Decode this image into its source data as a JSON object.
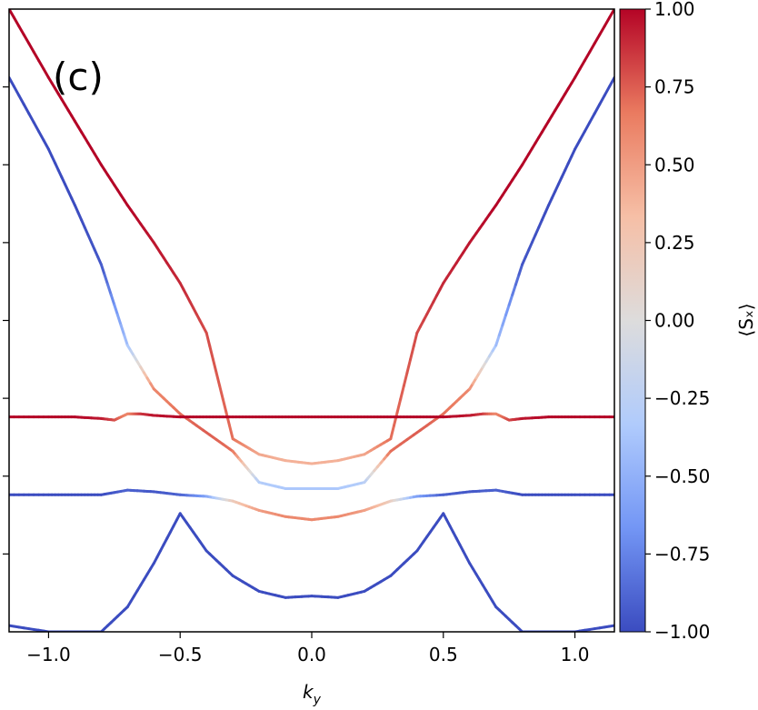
{
  "chart_data": {
    "type": "line",
    "panel_label": "(c)",
    "xlabel_main": "k",
    "xlabel_sub": "y",
    "ylabel": "",
    "xlim": [
      -1.15,
      1.15
    ],
    "ylim": [
      -1.0,
      1.0
    ],
    "y_ticks": [
      -0.75,
      -0.5,
      -0.25,
      0.0,
      0.25,
      0.5,
      0.75
    ],
    "x_ticks": [
      -1.0,
      -0.5,
      0.0,
      0.5,
      1.0
    ],
    "x_tick_labels": [
      "−1.0",
      "−0.5",
      "0.0",
      "0.5",
      "1.0"
    ],
    "grid": false,
    "colorbar": {
      "label": "⟨Sₓ⟩",
      "range": [
        -1.0,
        1.0
      ],
      "colormap": "coolwarm",
      "colors": [
        "#3b4cc0",
        "#7396f5",
        "#b0cbfc",
        "#dddcdc",
        "#f6bfa6",
        "#ea7b60",
        "#b40426"
      ],
      "ticks": [
        1.0,
        0.75,
        0.5,
        0.25,
        0.0,
        -0.25,
        -0.5,
        -0.75,
        -1.0
      ],
      "tick_labels": [
        "1.00",
        "0.75",
        "0.50",
        "0.25",
        "0.00",
        "−0.25",
        "−0.50",
        "−0.75",
        "−1.00"
      ]
    },
    "series": [
      {
        "x": [
          -1.15,
          -1.0,
          -0.9,
          -0.8,
          -0.7,
          -0.6,
          -0.5,
          -0.4,
          -0.3,
          -0.2,
          -0.1,
          0.0,
          0.1,
          0.2,
          0.3,
          0.4,
          0.5,
          0.6,
          0.7,
          0.8,
          0.9,
          1.0,
          1.15
        ],
        "y": [
          1.0,
          0.78,
          0.64,
          0.5,
          0.37,
          0.25,
          0.12,
          -0.04,
          -0.38,
          -0.43,
          -0.45,
          -0.46,
          -0.45,
          -0.43,
          -0.38,
          -0.04,
          0.12,
          0.25,
          0.37,
          0.5,
          0.64,
          0.78,
          1.0
        ],
        "sx": [
          1,
          1,
          1,
          1,
          1,
          0.95,
          0.9,
          0.8,
          0.7,
          0.45,
          0.4,
          0.4,
          0.4,
          0.45,
          0.7,
          0.8,
          0.9,
          0.95,
          1,
          1,
          1,
          1,
          1
        ]
      },
      {
        "x": [
          -1.15,
          -1.0,
          -0.9,
          -0.8,
          -0.7,
          -0.6,
          -0.5,
          -0.4,
          -0.3,
          -0.2,
          -0.1,
          0.0,
          0.1,
          0.2,
          0.3,
          0.4,
          0.5,
          0.6,
          0.7,
          0.8,
          0.9,
          1.0,
          1.15
        ],
        "y": [
          0.78,
          0.55,
          0.37,
          0.18,
          -0.08,
          -0.22,
          -0.3,
          -0.36,
          -0.42,
          -0.52,
          -0.54,
          -0.54,
          -0.54,
          -0.52,
          -0.42,
          -0.36,
          -0.3,
          -0.22,
          -0.08,
          0.18,
          0.37,
          0.55,
          0.78
        ],
        "sx": [
          -1,
          -1,
          -1,
          -0.95,
          -0.4,
          0.6,
          0.7,
          0.75,
          0.7,
          -0.3,
          -0.35,
          -0.35,
          -0.35,
          -0.3,
          0.7,
          0.75,
          0.7,
          0.6,
          -0.4,
          -0.95,
          -1,
          -1,
          -1
        ]
      },
      {
        "x": [
          -1.15,
          -1.0,
          -0.9,
          -0.8,
          -0.75,
          -0.7,
          -0.65,
          -0.6,
          -0.5,
          -0.4,
          -0.3,
          -0.2,
          -0.1,
          0.0,
          0.1,
          0.2,
          0.3,
          0.4,
          0.5,
          0.6,
          0.65,
          0.7,
          0.75,
          0.8,
          0.9,
          1.0,
          1.15
        ],
        "y": [
          -0.31,
          -0.31,
          -0.31,
          -0.315,
          -0.32,
          -0.3,
          -0.3,
          -0.305,
          -0.31,
          -0.31,
          -0.31,
          -0.31,
          -0.31,
          -0.31,
          -0.31,
          -0.31,
          -0.31,
          -0.31,
          -0.31,
          -0.305,
          -0.3,
          -0.3,
          -0.32,
          -0.315,
          -0.31,
          -0.31,
          -0.31
        ],
        "sx": [
          1,
          1,
          1,
          0.95,
          0.8,
          0.6,
          0.85,
          0.95,
          1,
          1,
          1,
          1,
          1,
          1,
          1,
          1,
          1,
          1,
          1,
          0.95,
          0.85,
          0.6,
          0.8,
          0.95,
          1,
          1,
          1
        ]
      },
      {
        "x": [
          -1.15,
          -1.0,
          -0.9,
          -0.8,
          -0.7,
          -0.6,
          -0.5,
          -0.4,
          -0.3,
          -0.2,
          -0.1,
          0.0,
          0.1,
          0.2,
          0.3,
          0.4,
          0.5,
          0.6,
          0.7,
          0.8,
          0.9,
          1.0,
          1.15
        ],
        "y": [
          -0.56,
          -0.56,
          -0.56,
          -0.56,
          -0.545,
          -0.55,
          -0.56,
          -0.565,
          -0.58,
          -0.61,
          -0.63,
          -0.64,
          -0.63,
          -0.61,
          -0.58,
          -0.565,
          -0.56,
          -0.55,
          -0.545,
          -0.56,
          -0.56,
          -0.56,
          -0.56
        ],
        "sx": [
          -1,
          -1,
          -1,
          -1,
          -0.9,
          -0.95,
          -0.9,
          -0.6,
          0.2,
          0.5,
          0.6,
          0.6,
          0.6,
          0.5,
          0.2,
          -0.6,
          -0.9,
          -0.95,
          -0.9,
          -1,
          -1,
          -1,
          -1
        ]
      },
      {
        "x": [
          -1.15,
          -1.0,
          -0.9,
          -0.8,
          -0.7,
          -0.6,
          -0.5,
          -0.4,
          -0.3,
          -0.2,
          -0.1,
          0.0,
          0.1,
          0.2,
          0.3,
          0.4,
          0.5,
          0.6,
          0.7,
          0.8,
          0.9,
          1.0,
          1.15
        ],
        "y": [
          -0.98,
          -1.0,
          -1.0,
          -1.0,
          -0.92,
          -0.78,
          -0.62,
          -0.74,
          -0.82,
          -0.87,
          -0.89,
          -0.885,
          -0.89,
          -0.87,
          -0.82,
          -0.74,
          -0.62,
          -0.78,
          -0.92,
          -1.0,
          -1.0,
          -1.0,
          -0.98
        ],
        "sx": [
          -1,
          -1,
          -1,
          -1,
          -1,
          -1,
          -1,
          -1,
          -1,
          -1,
          -1,
          -1,
          -1,
          -1,
          -1,
          -1,
          -1,
          -1,
          -1,
          -1,
          -1,
          -1,
          -1
        ]
      }
    ]
  }
}
